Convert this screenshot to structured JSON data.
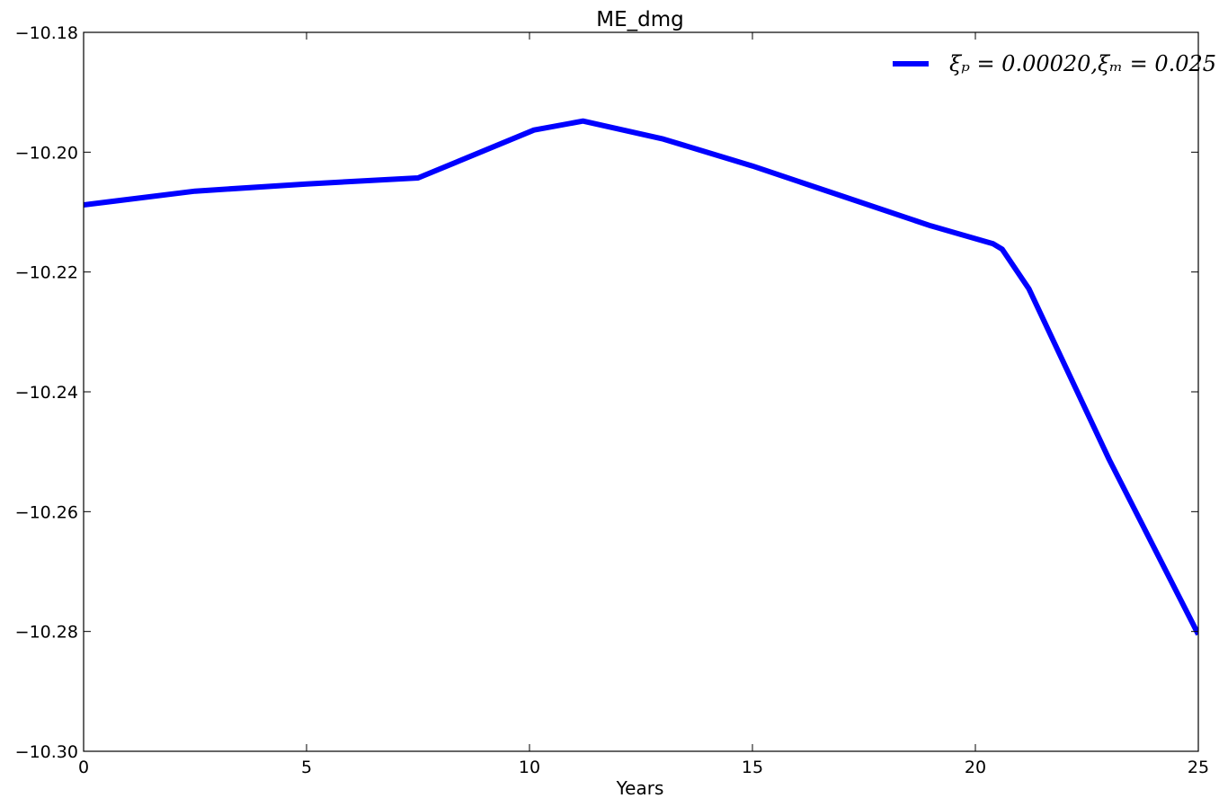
{
  "chart_data": {
    "type": "line",
    "title": "ME_dmg",
    "xlabel": "Years",
    "ylabel": "",
    "xlim": [
      0,
      25
    ],
    "ylim": [
      -10.3,
      -10.18
    ],
    "xticks": [
      0,
      5,
      10,
      15,
      20,
      25
    ],
    "xtick_labels": [
      "0",
      "5",
      "10",
      "15",
      "20",
      "25"
    ],
    "yticks": [
      -10.3,
      -10.28,
      -10.26,
      -10.24,
      -10.22,
      -10.2,
      -10.18
    ],
    "ytick_labels": [
      "−10.30",
      "−10.28",
      "−10.26",
      "−10.24",
      "−10.22",
      "−10.20",
      "−10.18"
    ],
    "grid": false,
    "legend_position": "top-right",
    "series": [
      {
        "name": "ξₚ = 0.00020,ξₘ = 0.025",
        "color": "#0000ff",
        "x": [
          0,
          2.5,
          5,
          7.5,
          10.1,
          11.2,
          13,
          15,
          17,
          19,
          20.4,
          20.6,
          21.2,
          23,
          25
        ],
        "y": [
          -10.2088,
          -10.2065,
          -10.2053,
          -10.2043,
          -10.1963,
          -10.1948,
          -10.1978,
          -10.2023,
          -10.2073,
          -10.2123,
          -10.2153,
          -10.2162,
          -10.2228,
          -10.2513,
          -10.2805
        ]
      }
    ]
  }
}
